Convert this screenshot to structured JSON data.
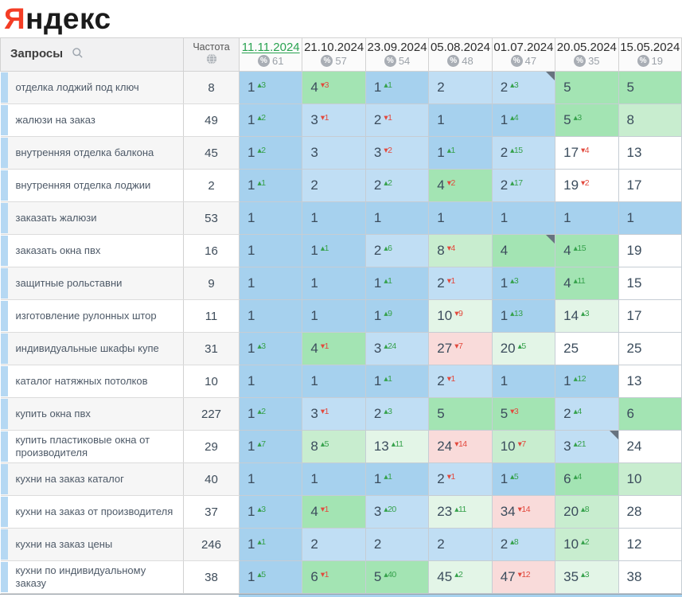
{
  "logo": {
    "first_letter": "Я",
    "rest": "ндекс"
  },
  "palette": {
    "blue1": "#a6d1ee",
    "blue2": "#c0def4",
    "green1": "#a3e4b3",
    "green2": "#c8edcf",
    "green3": "#e3f5e7",
    "pink": "#f9dbda",
    "white": "#ffffff",
    "delta_up": "#35a14b",
    "delta_down": "#e2493d",
    "selected_date": "#2aa351",
    "logo_red": "#f43d25",
    "row_stripe": "#b5d8f3"
  },
  "glyphs": {
    "up": "▴",
    "down": "▾"
  },
  "icons": {
    "queries_header": "search-icon",
    "frequency_header": "globe-icon",
    "date_badge": "percent-icon",
    "cell_corner": "note-marker-icon"
  },
  "table": {
    "queries_header": "Запросы",
    "frequency_header": "Частота",
    "columns": [
      {
        "date": "11.11.2024",
        "count": "61",
        "selected": true
      },
      {
        "date": "21.10.2024",
        "count": "57",
        "selected": false
      },
      {
        "date": "23.09.2024",
        "count": "54",
        "selected": false
      },
      {
        "date": "05.08.2024",
        "count": "48",
        "selected": false
      },
      {
        "date": "01.07.2024",
        "count": "47",
        "selected": false
      },
      {
        "date": "20.05.2024",
        "count": "35",
        "selected": false
      },
      {
        "date": "15.05.2024",
        "count": "19",
        "selected": false
      }
    ],
    "rows": [
      {
        "query": "отделка лоджий под ключ",
        "frequency": "8",
        "cells": [
          {
            "pos": "1",
            "delta": "3",
            "dir": "up",
            "bg": "blue1"
          },
          {
            "pos": "4",
            "delta": "3",
            "dir": "down",
            "bg": "green1"
          },
          {
            "pos": "1",
            "delta": "1",
            "dir": "up",
            "bg": "blue1"
          },
          {
            "pos": "2",
            "bg": "blue2"
          },
          {
            "pos": "2",
            "delta": "3",
            "dir": "up",
            "bg": "blue2",
            "note": true
          },
          {
            "pos": "5",
            "bg": "green1"
          },
          {
            "pos": "5",
            "bg": "green1"
          }
        ]
      },
      {
        "query": "жалюзи на заказ",
        "frequency": "49",
        "cells": [
          {
            "pos": "1",
            "delta": "2",
            "dir": "up",
            "bg": "blue1"
          },
          {
            "pos": "3",
            "delta": "1",
            "dir": "down",
            "bg": "blue2"
          },
          {
            "pos": "2",
            "delta": "1",
            "dir": "down",
            "bg": "blue2"
          },
          {
            "pos": "1",
            "bg": "blue1"
          },
          {
            "pos": "1",
            "delta": "4",
            "dir": "up",
            "bg": "blue1"
          },
          {
            "pos": "5",
            "delta": "3",
            "dir": "up",
            "bg": "green1"
          },
          {
            "pos": "8",
            "bg": "green2"
          }
        ]
      },
      {
        "query": "внутренняя отделка балкона",
        "frequency": "45",
        "cells": [
          {
            "pos": "1",
            "delta": "2",
            "dir": "up",
            "bg": "blue1"
          },
          {
            "pos": "3",
            "bg": "blue2"
          },
          {
            "pos": "3",
            "delta": "2",
            "dir": "down",
            "bg": "blue2"
          },
          {
            "pos": "1",
            "delta": "1",
            "dir": "up",
            "bg": "blue1"
          },
          {
            "pos": "2",
            "delta": "15",
            "dir": "up",
            "bg": "blue2"
          },
          {
            "pos": "17",
            "delta": "4",
            "dir": "down",
            "bg": "white"
          },
          {
            "pos": "13",
            "bg": "white"
          }
        ]
      },
      {
        "query": "внутренняя отделка лоджии",
        "frequency": "2",
        "cells": [
          {
            "pos": "1",
            "delta": "1",
            "dir": "up",
            "bg": "blue1"
          },
          {
            "pos": "2",
            "bg": "blue2"
          },
          {
            "pos": "2",
            "delta": "2",
            "dir": "up",
            "bg": "blue2"
          },
          {
            "pos": "4",
            "delta": "2",
            "dir": "down",
            "bg": "green1"
          },
          {
            "pos": "2",
            "delta": "17",
            "dir": "up",
            "bg": "blue2"
          },
          {
            "pos": "19",
            "delta": "2",
            "dir": "down",
            "bg": "white"
          },
          {
            "pos": "17",
            "bg": "white"
          }
        ]
      },
      {
        "query": "заказать жалюзи",
        "frequency": "53",
        "cells": [
          {
            "pos": "1",
            "bg": "blue1"
          },
          {
            "pos": "1",
            "bg": "blue1"
          },
          {
            "pos": "1",
            "bg": "blue1"
          },
          {
            "pos": "1",
            "bg": "blue1"
          },
          {
            "pos": "1",
            "bg": "blue1"
          },
          {
            "pos": "1",
            "bg": "blue1"
          },
          {
            "pos": "1",
            "bg": "blue1"
          }
        ]
      },
      {
        "query": "заказать окна пвх",
        "frequency": "16",
        "cells": [
          {
            "pos": "1",
            "bg": "blue1"
          },
          {
            "pos": "1",
            "delta": "1",
            "dir": "up",
            "bg": "blue1"
          },
          {
            "pos": "2",
            "delta": "6",
            "dir": "up",
            "bg": "blue2"
          },
          {
            "pos": "8",
            "delta": "4",
            "dir": "down",
            "bg": "green2"
          },
          {
            "pos": "4",
            "bg": "green1",
            "note": true
          },
          {
            "pos": "4",
            "delta": "15",
            "dir": "up",
            "bg": "green1"
          },
          {
            "pos": "19",
            "bg": "white"
          }
        ]
      },
      {
        "query": "защитные рольставни",
        "frequency": "9",
        "cells": [
          {
            "pos": "1",
            "bg": "blue1"
          },
          {
            "pos": "1",
            "bg": "blue1"
          },
          {
            "pos": "1",
            "delta": "1",
            "dir": "up",
            "bg": "blue1"
          },
          {
            "pos": "2",
            "delta": "1",
            "dir": "down",
            "bg": "blue2"
          },
          {
            "pos": "1",
            "delta": "3",
            "dir": "up",
            "bg": "blue1"
          },
          {
            "pos": "4",
            "delta": "11",
            "dir": "up",
            "bg": "green1"
          },
          {
            "pos": "15",
            "bg": "white"
          }
        ]
      },
      {
        "query": "изготовление рулонных штор",
        "frequency": "11",
        "cells": [
          {
            "pos": "1",
            "bg": "blue1"
          },
          {
            "pos": "1",
            "bg": "blue1"
          },
          {
            "pos": "1",
            "delta": "9",
            "dir": "up",
            "bg": "blue1"
          },
          {
            "pos": "10",
            "delta": "9",
            "dir": "down",
            "bg": "green3"
          },
          {
            "pos": "1",
            "delta": "13",
            "dir": "up",
            "bg": "blue1"
          },
          {
            "pos": "14",
            "delta": "3",
            "dir": "up",
            "bg": "green3"
          },
          {
            "pos": "17",
            "bg": "white"
          }
        ]
      },
      {
        "query": "индивидуальные шкафы купе",
        "frequency": "31",
        "cells": [
          {
            "pos": "1",
            "delta": "3",
            "dir": "up",
            "bg": "blue1"
          },
          {
            "pos": "4",
            "delta": "1",
            "dir": "down",
            "bg": "green1"
          },
          {
            "pos": "3",
            "delta": "24",
            "dir": "up",
            "bg": "blue2"
          },
          {
            "pos": "27",
            "delta": "7",
            "dir": "down",
            "bg": "pink"
          },
          {
            "pos": "20",
            "delta": "5",
            "dir": "up",
            "bg": "green3"
          },
          {
            "pos": "25",
            "bg": "white"
          },
          {
            "pos": "25",
            "bg": "white"
          }
        ]
      },
      {
        "query": "каталог натяжных потолков",
        "frequency": "10",
        "cells": [
          {
            "pos": "1",
            "bg": "blue1"
          },
          {
            "pos": "1",
            "bg": "blue1"
          },
          {
            "pos": "1",
            "delta": "1",
            "dir": "up",
            "bg": "blue1"
          },
          {
            "pos": "2",
            "delta": "1",
            "dir": "down",
            "bg": "blue2"
          },
          {
            "pos": "1",
            "bg": "blue1"
          },
          {
            "pos": "1",
            "delta": "12",
            "dir": "up",
            "bg": "blue1"
          },
          {
            "pos": "13",
            "bg": "white"
          }
        ]
      },
      {
        "query": "купить окна пвх",
        "frequency": "227",
        "cells": [
          {
            "pos": "1",
            "delta": "2",
            "dir": "up",
            "bg": "blue1"
          },
          {
            "pos": "3",
            "delta": "1",
            "dir": "down",
            "bg": "blue2"
          },
          {
            "pos": "2",
            "delta": "3",
            "dir": "up",
            "bg": "blue2"
          },
          {
            "pos": "5",
            "bg": "green1"
          },
          {
            "pos": "5",
            "delta": "3",
            "dir": "down",
            "bg": "green1"
          },
          {
            "pos": "2",
            "delta": "4",
            "dir": "up",
            "bg": "blue2"
          },
          {
            "pos": "6",
            "bg": "green1"
          }
        ]
      },
      {
        "query": "купить пластиковые окна от производителя",
        "frequency": "29",
        "cells": [
          {
            "pos": "1",
            "delta": "7",
            "dir": "up",
            "bg": "blue1"
          },
          {
            "pos": "8",
            "delta": "5",
            "dir": "up",
            "bg": "green2"
          },
          {
            "pos": "13",
            "delta": "11",
            "dir": "up",
            "bg": "green3"
          },
          {
            "pos": "24",
            "delta": "14",
            "dir": "down",
            "bg": "pink"
          },
          {
            "pos": "10",
            "delta": "7",
            "dir": "down",
            "bg": "green2"
          },
          {
            "pos": "3",
            "delta": "21",
            "dir": "up",
            "bg": "blue2",
            "note": true
          },
          {
            "pos": "24",
            "bg": "white"
          }
        ]
      },
      {
        "query": "кухни на заказ каталог",
        "frequency": "40",
        "cells": [
          {
            "pos": "1",
            "bg": "blue1"
          },
          {
            "pos": "1",
            "bg": "blue1"
          },
          {
            "pos": "1",
            "delta": "1",
            "dir": "up",
            "bg": "blue1"
          },
          {
            "pos": "2",
            "delta": "1",
            "dir": "down",
            "bg": "blue2"
          },
          {
            "pos": "1",
            "delta": "5",
            "dir": "up",
            "bg": "blue1"
          },
          {
            "pos": "6",
            "delta": "4",
            "dir": "up",
            "bg": "green1"
          },
          {
            "pos": "10",
            "bg": "green2"
          }
        ]
      },
      {
        "query": "кухни на заказ от производителя",
        "frequency": "37",
        "cells": [
          {
            "pos": "1",
            "delta": "3",
            "dir": "up",
            "bg": "blue1"
          },
          {
            "pos": "4",
            "delta": "1",
            "dir": "down",
            "bg": "green1"
          },
          {
            "pos": "3",
            "delta": "20",
            "dir": "up",
            "bg": "blue2"
          },
          {
            "pos": "23",
            "delta": "11",
            "dir": "up",
            "bg": "green3"
          },
          {
            "pos": "34",
            "delta": "14",
            "dir": "down",
            "bg": "pink"
          },
          {
            "pos": "20",
            "delta": "8",
            "dir": "up",
            "bg": "green2"
          },
          {
            "pos": "28",
            "bg": "white"
          }
        ]
      },
      {
        "query": "кухни на заказ цены",
        "frequency": "246",
        "cells": [
          {
            "pos": "1",
            "delta": "1",
            "dir": "up",
            "bg": "blue1"
          },
          {
            "pos": "2",
            "bg": "blue2"
          },
          {
            "pos": "2",
            "bg": "blue2"
          },
          {
            "pos": "2",
            "bg": "blue2"
          },
          {
            "pos": "2",
            "delta": "8",
            "dir": "up",
            "bg": "blue2"
          },
          {
            "pos": "10",
            "delta": "2",
            "dir": "up",
            "bg": "green2"
          },
          {
            "pos": "12",
            "bg": "white"
          }
        ]
      },
      {
        "query": "кухни по индивидуальному заказу",
        "frequency": "38",
        "cells": [
          {
            "pos": "1",
            "delta": "5",
            "dir": "up",
            "bg": "blue1"
          },
          {
            "pos": "6",
            "delta": "1",
            "dir": "down",
            "bg": "green1"
          },
          {
            "pos": "5",
            "delta": "40",
            "dir": "up",
            "bg": "green1"
          },
          {
            "pos": "45",
            "delta": "2",
            "dir": "up",
            "bg": "green3"
          },
          {
            "pos": "47",
            "delta": "12",
            "dir": "down",
            "bg": "pink"
          },
          {
            "pos": "35",
            "delta": "3",
            "dir": "up",
            "bg": "green3"
          },
          {
            "pos": "38",
            "bg": "white"
          }
        ]
      }
    ]
  }
}
